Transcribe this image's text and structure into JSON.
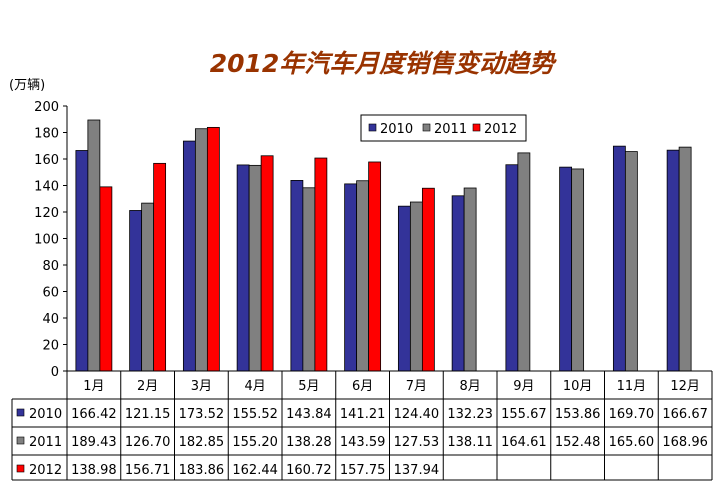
{
  "page": {
    "title": "2012年汽车月度销售变动趋势",
    "unit_label": "(万辆)"
  },
  "chart_data": {
    "type": "bar",
    "title": "2012年汽车月度销售变动趋势",
    "ylabel": "(万辆)",
    "xlabel": "",
    "ylim": [
      0,
      200
    ],
    "yticks": [
      0,
      20,
      40,
      60,
      80,
      100,
      120,
      140,
      160,
      180,
      200
    ],
    "grid": false,
    "legend_position": "top-right",
    "categories": [
      "1月",
      "2月",
      "3月",
      "4月",
      "5月",
      "6月",
      "7月",
      "8月",
      "9月",
      "10月",
      "11月",
      "12月"
    ],
    "series": [
      {
        "name": "2010",
        "color": "#333399",
        "values": [
          166.42,
          121.15,
          173.52,
          155.52,
          143.84,
          141.21,
          124.4,
          132.23,
          155.67,
          153.86,
          169.7,
          166.67
        ],
        "labels": [
          "166.42",
          "121.15",
          "173.52",
          "155.52",
          "143.84",
          "141.21",
          "124.40",
          "132.23",
          "155.67",
          "153.86",
          "169.70",
          "166.67"
        ]
      },
      {
        "name": "2011",
        "color": "#808080",
        "values": [
          189.43,
          126.7,
          182.85,
          155.2,
          138.28,
          143.59,
          127.53,
          138.11,
          164.61,
          152.48,
          165.6,
          168.96
        ],
        "labels": [
          "189.43",
          "126.70",
          "182.85",
          "155.20",
          "138.28",
          "143.59",
          "127.53",
          "138.11",
          "164.61",
          "152.48",
          "165.60",
          "168.96"
        ]
      },
      {
        "name": "2012",
        "color": "#FF0000",
        "values": [
          138.98,
          156.71,
          183.86,
          162.44,
          160.72,
          157.75,
          137.94,
          null,
          null,
          null,
          null,
          null
        ],
        "labels": [
          "138.98",
          "156.71",
          "183.86",
          "162.44",
          "160.72",
          "157.75",
          "137.94",
          "",
          "",
          "",
          "",
          ""
        ]
      }
    ],
    "colors": {
      "title": "#993300",
      "axis": "#000000"
    }
  }
}
